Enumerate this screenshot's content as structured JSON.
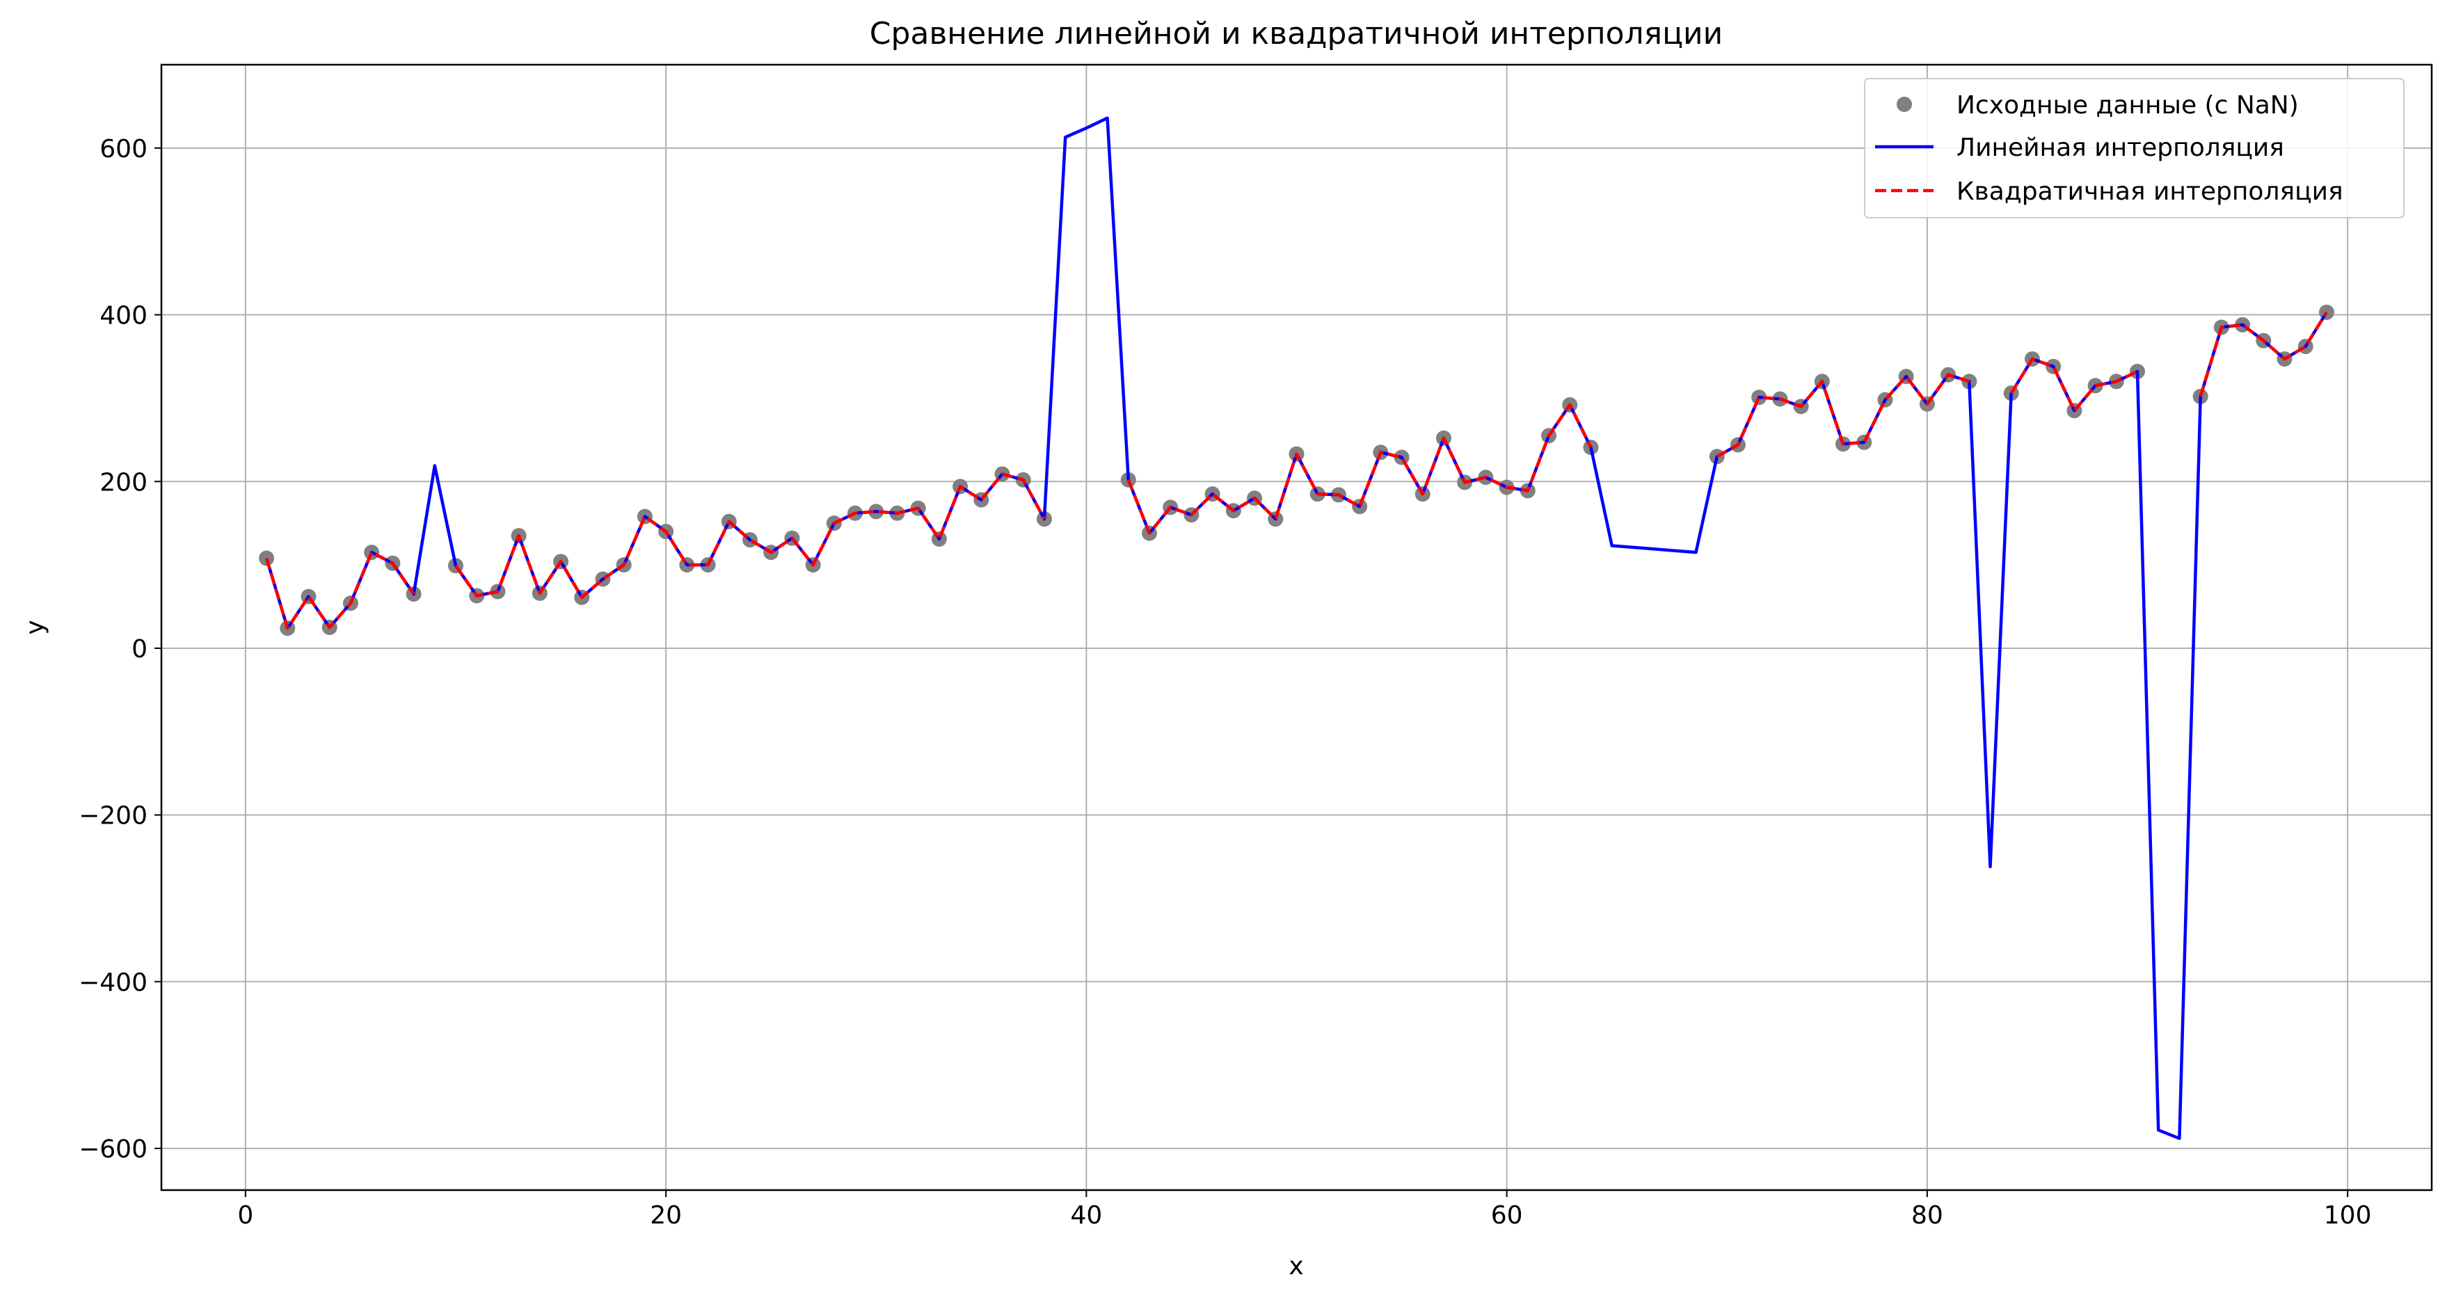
{
  "chart_data": {
    "type": "line",
    "title": "Сравнение линейной и квадратичной интерполяции",
    "xlabel": "x",
    "ylabel": "y",
    "xlim": [
      -4,
      104
    ],
    "ylim": [
      -650,
      700
    ],
    "grid": true,
    "legend_position": "top-right",
    "x_ticks": [
      0,
      20,
      40,
      60,
      80,
      100
    ],
    "x_tick_labels": [
      "0",
      "20",
      "40",
      "60",
      "80",
      "100"
    ],
    "y_ticks": [
      -600,
      -400,
      -200,
      0,
      200,
      400,
      600
    ],
    "y_tick_labels": [
      "−600",
      "−400",
      "−200",
      "0",
      "200",
      "400",
      "600"
    ],
    "series": [
      {
        "name": "Исходные данные (с NaN)",
        "kind": "markers",
        "color": "#808080",
        "x": [
          1,
          2,
          3,
          4,
          5,
          6,
          7,
          8,
          10,
          11,
          12,
          13,
          14,
          15,
          16,
          17,
          18,
          19,
          20,
          21,
          22,
          23,
          24,
          25,
          26,
          27,
          28,
          29,
          30,
          31,
          32,
          33,
          34,
          35,
          36,
          37,
          38,
          42,
          43,
          44,
          45,
          46,
          47,
          48,
          49,
          50,
          51,
          52,
          53,
          54,
          55,
          56,
          57,
          58,
          59,
          60,
          61,
          62,
          63,
          64,
          70,
          71,
          72,
          73,
          74,
          75,
          76,
          77,
          78,
          79,
          80,
          81,
          82,
          84,
          85,
          86,
          87,
          88,
          89,
          90,
          93,
          94,
          95,
          96,
          97,
          98,
          99
        ],
        "y": [
          108,
          24,
          62,
          25,
          54,
          115,
          102,
          65,
          99,
          63,
          68,
          135,
          66,
          104,
          61,
          83,
          100,
          158,
          140,
          100,
          100,
          152,
          130,
          115,
          132,
          100,
          150,
          162,
          164,
          162,
          168,
          131,
          194,
          178,
          209,
          202,
          155,
          202,
          138,
          169,
          160,
          185,
          165,
          180,
          155,
          233,
          185,
          184,
          170,
          235,
          229,
          185,
          252,
          199,
          205,
          193,
          189,
          255,
          292,
          241,
          230,
          244,
          301,
          299,
          290,
          320,
          245,
          247,
          298,
          326,
          293,
          328,
          320,
          306,
          347,
          338,
          285,
          315,
          320,
          332,
          302,
          385,
          388,
          369,
          347,
          362,
          403
        ]
      },
      {
        "name": "Линейная интерполяция",
        "kind": "line",
        "color": "#0000ff",
        "x": [
          1,
          2,
          3,
          4,
          5,
          6,
          7,
          8,
          9,
          10,
          11,
          12,
          13,
          14,
          15,
          16,
          17,
          18,
          19,
          20,
          21,
          22,
          23,
          24,
          25,
          26,
          27,
          28,
          29,
          30,
          31,
          32,
          33,
          34,
          35,
          36,
          37,
          38,
          39,
          40,
          41,
          42,
          43,
          44,
          45,
          46,
          47,
          48,
          49,
          50,
          51,
          52,
          53,
          54,
          55,
          56,
          57,
          58,
          59,
          60,
          61,
          62,
          63,
          64,
          65,
          66,
          67,
          68,
          69,
          70,
          71,
          72,
          73,
          74,
          75,
          76,
          77,
          78,
          79,
          80,
          81,
          82,
          83,
          84,
          85,
          86,
          87,
          88,
          89,
          90,
          91,
          92,
          93,
          94,
          95,
          96,
          97,
          98,
          99
        ],
        "y": [
          108,
          24,
          62,
          25,
          54,
          115,
          102,
          65,
          219,
          99,
          63,
          68,
          135,
          66,
          104,
          61,
          83,
          100,
          158,
          140,
          100,
          100,
          152,
          130,
          115,
          132,
          100,
          150,
          162,
          164,
          162,
          168,
          131,
          194,
          178,
          209,
          202,
          155,
          613,
          624,
          636,
          202,
          138,
          169,
          160,
          185,
          165,
          180,
          155,
          233,
          185,
          184,
          170,
          235,
          229,
          185,
          252,
          199,
          205,
          193,
          189,
          255,
          292,
          241,
          123,
          121,
          119,
          117,
          115,
          230,
          244,
          301,
          299,
          290,
          320,
          245,
          247,
          298,
          326,
          293,
          328,
          320,
          -262,
          306,
          347,
          338,
          285,
          315,
          320,
          332,
          -578,
          -588,
          302,
          385,
          388,
          369,
          347,
          362,
          403
        ]
      },
      {
        "name": "Квадратичная интерполяция",
        "kind": "dashed",
        "color": "#ff0000",
        "segments": [
          {
            "x": [
              1,
              2,
              3,
              4,
              5,
              6,
              7,
              8
            ],
            "y": [
              108,
              24,
              62,
              25,
              54,
              115,
              102,
              65
            ]
          },
          {
            "x": [
              10,
              11,
              12,
              13,
              14,
              15,
              16,
              17,
              18,
              19,
              20,
              21,
              22,
              23,
              24,
              25,
              26,
              27,
              28,
              29,
              30,
              31,
              32,
              33,
              34,
              35,
              36,
              37,
              38
            ],
            "y": [
              99,
              63,
              68,
              135,
              66,
              104,
              61,
              83,
              100,
              158,
              140,
              100,
              100,
              152,
              130,
              115,
              132,
              100,
              150,
              162,
              164,
              162,
              168,
              131,
              194,
              178,
              209,
              202,
              155
            ]
          },
          {
            "x": [
              42,
              43,
              44,
              45,
              46,
              47,
              48,
              49,
              50,
              51,
              52,
              53,
              54,
              55,
              56,
              57,
              58,
              59,
              60,
              61,
              62,
              63,
              64
            ],
            "y": [
              202,
              138,
              169,
              160,
              185,
              165,
              180,
              155,
              233,
              185,
              184,
              170,
              235,
              229,
              185,
              252,
              199,
              205,
              193,
              189,
              255,
              292,
              241
            ]
          },
          {
            "x": [
              70,
              71,
              72,
              73,
              74,
              75,
              76,
              77,
              78,
              79,
              80,
              81,
              82
            ],
            "y": [
              230,
              244,
              301,
              299,
              290,
              320,
              245,
              247,
              298,
              326,
              293,
              328,
              320
            ]
          },
          {
            "x": [
              84,
              85,
              86,
              87,
              88,
              89,
              90
            ],
            "y": [
              306,
              347,
              338,
              285,
              315,
              320,
              332
            ]
          },
          {
            "x": [
              93,
              94,
              95,
              96,
              97,
              98,
              99
            ],
            "y": [
              302,
              385,
              388,
              369,
              347,
              362,
              403
            ]
          }
        ]
      }
    ]
  }
}
